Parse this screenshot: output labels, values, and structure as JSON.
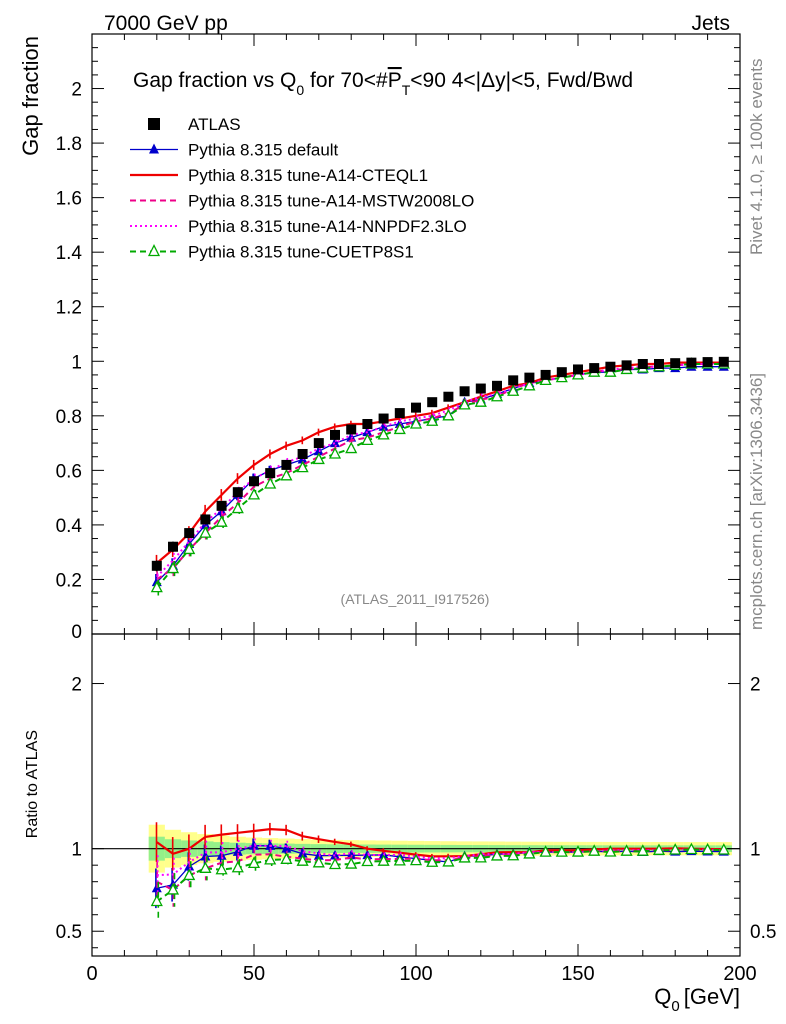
{
  "header": {
    "energy_label": "7000 GeV pp",
    "process_label": "Jets"
  },
  "side": {
    "rivet": "Rivet 4.1.0, ≥ 100k events",
    "mcplots": "mcplots.cern.ch [arXiv:1306.3436]"
  },
  "chart_data": {
    "type": "scatter",
    "title": "Gap fraction vs Q0 for 70<#PT<90  4<|Δy|<5, Fwd/Bwd",
    "title_parts": {
      "pre": "Gap fraction vs Q",
      "sub": "0",
      "mid": " for 70<#",
      "ptP": "P",
      "ptT": "T",
      "post": "<90  4<|Δy|<5, Fwd/Bwd"
    },
    "analysis_id": "(ATLAS_2011_I917526)",
    "ylabel": "Gap fraction",
    "ratio_ylabel": "Ratio to ATLAS",
    "xlabel_main": "Q",
    "xlabel_sub": "0",
    "xlabel_unit": "[GeV]",
    "xlim": [
      0,
      200
    ],
    "ylim": [
      0,
      2.2
    ],
    "ratio_ylim": [
      0.35,
      2.3
    ],
    "x_ticks": [
      "0",
      "50",
      "100",
      "150",
      "200"
    ],
    "y_ticks": [
      "0",
      "0.2",
      "0.4",
      "0.6",
      "0.8",
      "1",
      "1.2",
      "1.4",
      "1.6",
      "1.8",
      "2"
    ],
    "ratio_ticks": [
      "0.5",
      "1",
      "2"
    ],
    "x": [
      20,
      25,
      30,
      35,
      40,
      45,
      50,
      55,
      60,
      65,
      70,
      75,
      80,
      85,
      90,
      95,
      100,
      105,
      110,
      115,
      120,
      125,
      130,
      135,
      140,
      145,
      150,
      155,
      160,
      165,
      170,
      175,
      180,
      185,
      190,
      195
    ],
    "series": [
      {
        "name": "ATLAS",
        "color": "#000000",
        "style": "data",
        "values": [
          0.25,
          0.32,
          0.37,
          0.42,
          0.47,
          0.52,
          0.56,
          0.59,
          0.62,
          0.66,
          0.7,
          0.73,
          0.75,
          0.77,
          0.79,
          0.81,
          0.83,
          0.85,
          0.87,
          0.89,
          0.9,
          0.91,
          0.93,
          0.94,
          0.95,
          0.96,
          0.97,
          0.975,
          0.98,
          0.985,
          0.99,
          0.99,
          0.993,
          0.995,
          0.997,
          0.998
        ]
      },
      {
        "name": "Pythia 8.315 default",
        "color": "#0000cc",
        "style": "solid",
        "marker": "triangle",
        "values": [
          0.19,
          0.25,
          0.33,
          0.4,
          0.45,
          0.51,
          0.57,
          0.6,
          0.62,
          0.64,
          0.67,
          0.7,
          0.72,
          0.74,
          0.76,
          0.77,
          0.78,
          0.79,
          0.8,
          0.85,
          0.86,
          0.88,
          0.9,
          0.92,
          0.93,
          0.94,
          0.95,
          0.96,
          0.96,
          0.97,
          0.97,
          0.975,
          0.975,
          0.98,
          0.98,
          0.98
        ]
      },
      {
        "name": "Pythia 8.315 tune-A14-CTEQL1",
        "color": "#ee0000",
        "style": "solid-thick",
        "values": [
          0.26,
          0.31,
          0.37,
          0.45,
          0.51,
          0.57,
          0.62,
          0.66,
          0.69,
          0.71,
          0.74,
          0.76,
          0.77,
          0.77,
          0.78,
          0.79,
          0.8,
          0.81,
          0.83,
          0.85,
          0.87,
          0.89,
          0.91,
          0.92,
          0.94,
          0.95,
          0.96,
          0.97,
          0.98,
          0.985,
          0.99,
          0.99,
          0.995,
          0.995,
          0.995,
          0.995
        ]
      },
      {
        "name": "Pythia 8.315 tune-A14-MSTW2008LO",
        "color": "#ee0088",
        "style": "dashed",
        "values": [
          0.2,
          0.24,
          0.31,
          0.37,
          0.43,
          0.48,
          0.54,
          0.57,
          0.59,
          0.62,
          0.65,
          0.68,
          0.71,
          0.72,
          0.74,
          0.76,
          0.78,
          0.79,
          0.81,
          0.84,
          0.86,
          0.87,
          0.9,
          0.92,
          0.93,
          0.94,
          0.95,
          0.96,
          0.97,
          0.97,
          0.98,
          0.98,
          0.985,
          0.99,
          0.99,
          0.99
        ]
      },
      {
        "name": "Pythia 8.315 tune-A14-NNPDF2.3LO",
        "color": "#ff00ff",
        "style": "dotted",
        "values": [
          0.21,
          0.27,
          0.34,
          0.41,
          0.46,
          0.52,
          0.57,
          0.6,
          0.63,
          0.65,
          0.68,
          0.7,
          0.73,
          0.74,
          0.76,
          0.78,
          0.79,
          0.8,
          0.82,
          0.85,
          0.87,
          0.88,
          0.9,
          0.92,
          0.93,
          0.94,
          0.95,
          0.96,
          0.97,
          0.975,
          0.98,
          0.98,
          0.985,
          0.99,
          0.99,
          0.99
        ]
      },
      {
        "name": "Pythia 8.315 tune-CUETP8S1",
        "color": "#00aa00",
        "style": "dashed",
        "marker": "open-triangle",
        "values": [
          0.17,
          0.24,
          0.31,
          0.37,
          0.41,
          0.46,
          0.51,
          0.55,
          0.58,
          0.61,
          0.64,
          0.66,
          0.68,
          0.71,
          0.73,
          0.75,
          0.77,
          0.78,
          0.8,
          0.84,
          0.85,
          0.87,
          0.89,
          0.91,
          0.93,
          0.94,
          0.95,
          0.96,
          0.96,
          0.97,
          0.975,
          0.98,
          0.985,
          0.99,
          0.99,
          0.99
        ]
      }
    ],
    "legend_position": "top-left"
  }
}
